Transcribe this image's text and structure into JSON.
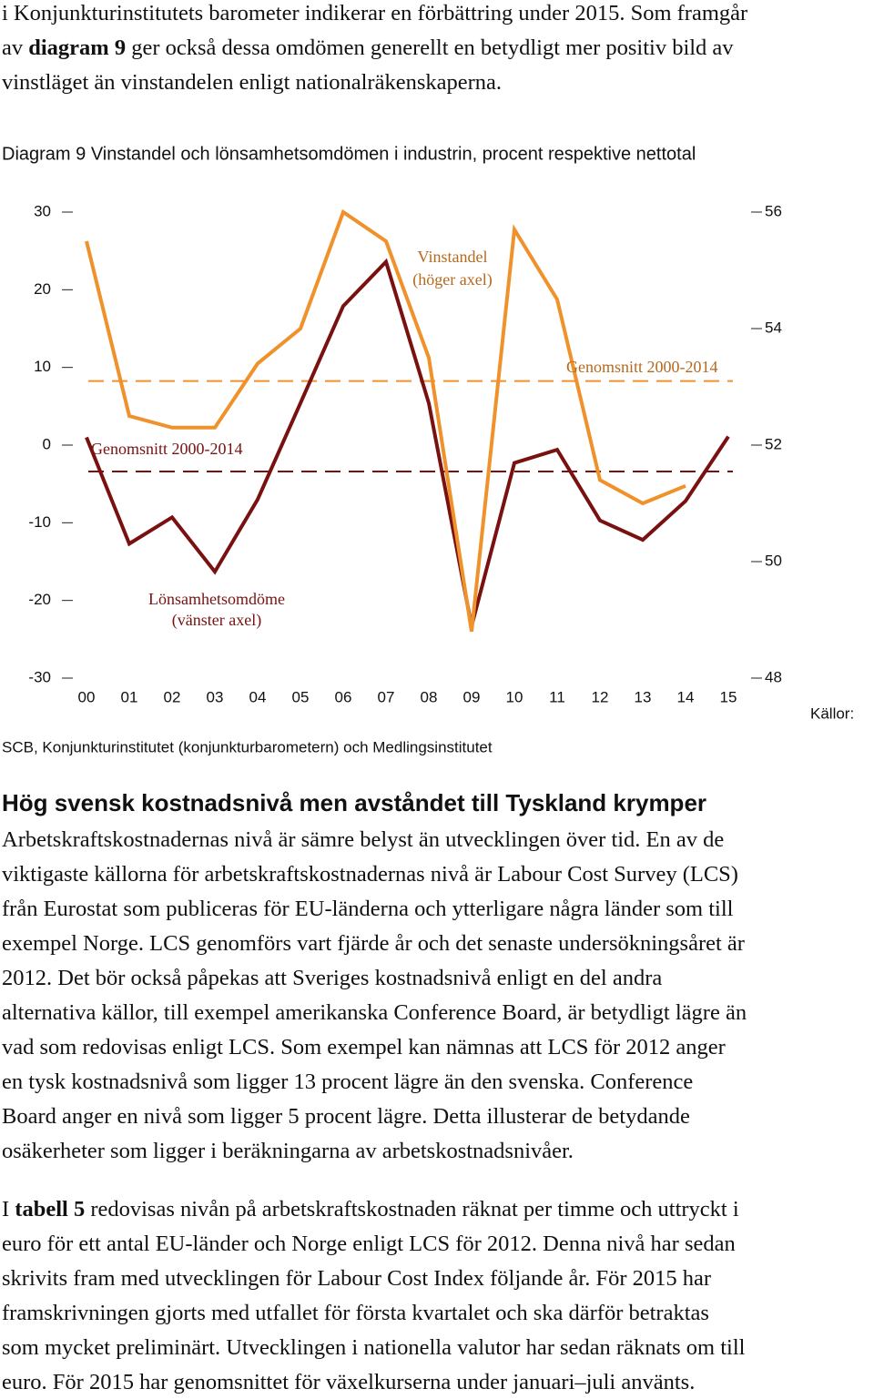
{
  "intro": {
    "lines": [
      [
        {
          "text": "i Konjunkturinstitutets barometer indikerar en förbättring under 2015. Som framgår"
        }
      ],
      [
        {
          "text": "av "
        },
        {
          "text": "diagram 9",
          "bold": true
        },
        {
          "text": " ger också dessa omdömen generellt en betydligt mer positiv bild av"
        }
      ],
      [
        {
          "text": "vinstläget än vinstandelen enligt nationalräkenskaperna."
        }
      ]
    ]
  },
  "chart_data": {
    "type": "line",
    "title": "Diagram 9 Vinstandel och lönsamhetsomdömen i industrin, procent respektive nettotal",
    "categories": [
      "00",
      "01",
      "02",
      "03",
      "04",
      "05",
      "06",
      "07",
      "08",
      "09",
      "10",
      "11",
      "12",
      "13",
      "14",
      "15"
    ],
    "series": [
      {
        "name": "Lönsamhetsomdöme",
        "note": "(vänster axel)",
        "color": "#7a1111",
        "axis": "y",
        "values": [
          1,
          -12.7,
          -9.3,
          -16.3,
          -7,
          5.4,
          17.9,
          23.6,
          5.4,
          -23.3,
          -2.3,
          -0.6,
          -9.7,
          -12.2,
          -7.2,
          1.1
        ]
      },
      {
        "name": "Vinstandel",
        "note": "(höger axel)",
        "color": "#f0922b",
        "axis": "y2",
        "values": [
          55.5,
          52.5,
          52.3,
          52.3,
          53.4,
          54.0,
          56.0,
          55.5,
          53.5,
          48.8,
          55.7,
          54.5,
          51.4,
          51.0,
          51.3,
          null
        ]
      }
    ],
    "averages": [
      {
        "label": "Genomsnitt 2000-2014",
        "value": -3.4,
        "axis": "y",
        "color": "#7a1111"
      },
      {
        "label": "Genomsnitt 2000-2014",
        "value": 53.1,
        "axis": "y2",
        "color": "#f0922b"
      }
    ],
    "ylim": [
      -30,
      30
    ],
    "yticks": [
      -30,
      -20,
      -10,
      0,
      10,
      20,
      30
    ],
    "y2lim": [
      48,
      56
    ],
    "y2ticks": [
      48,
      50,
      52,
      54,
      56
    ],
    "source_label": "Källor:",
    "source": "SCB, Konjunkturinstitutet (konjunkturbarometern) och Medlingsinstitutet"
  },
  "heading": "Hög svensk kostnadsnivå men avståndet till Tyskland krymper",
  "paragraphs": [
    {
      "lines": [
        [
          {
            "text": "Arbetskraftskostnadernas nivå är sämre belyst än utvecklingen över tid. En av de"
          }
        ],
        [
          {
            "text": "viktigaste källorna för arbetskraftskostnadernas nivå är Labour Cost Survey (LCS)"
          }
        ],
        [
          {
            "text": "från Eurostat som publiceras för EU-länderna och ytterligare några länder som till"
          }
        ],
        [
          {
            "text": "exempel Norge. LCS genomförs vart fjärde år och det senaste undersökningsåret är"
          }
        ],
        [
          {
            "text": "2012. Det bör också påpekas att Sveriges kostnadsnivå enligt en del andra"
          }
        ],
        [
          {
            "text": "alternativa källor, till exempel amerikanska Conference Board, är betydligt lägre än"
          }
        ],
        [
          {
            "text": "vad som redovisas enligt LCS. Som exempel kan nämnas att LCS för 2012 anger"
          }
        ],
        [
          {
            "text": "en tysk kostnadsnivå som ligger 13 procent lägre än den svenska. Conference"
          }
        ],
        [
          {
            "text": "Board anger en nivå som ligger 5 procent lägre. Detta illusterar de betydande"
          }
        ],
        [
          {
            "text": "osäkerheter som ligger i beräkningarna av arbetskostnadsnivåer."
          }
        ]
      ]
    },
    {
      "lines": [
        [
          {
            "text": "I "
          },
          {
            "text": "tabell 5",
            "bold": true
          },
          {
            "text": " redovisas nivån på arbetskraftskostnaden räknat per timme och uttryckt i"
          }
        ],
        [
          {
            "text": "euro för ett antal EU-länder och Norge enligt LCS för 2012. Denna nivå har sedan"
          }
        ],
        [
          {
            "text": "skrivits fram med utvecklingen för Labour Cost Index följande år. För 2015 har"
          }
        ],
        [
          {
            "text": "framskrivningen gjorts med utfallet för första kvartalet och ska därför betraktas"
          }
        ],
        [
          {
            "text": "som mycket preliminärt. Utvecklingen i nationella valutor har sedan räknats om till"
          }
        ],
        [
          {
            "text": "euro. För 2015 har genomsnittet för växelkurserna under januari–juli använts."
          }
        ]
      ]
    }
  ]
}
